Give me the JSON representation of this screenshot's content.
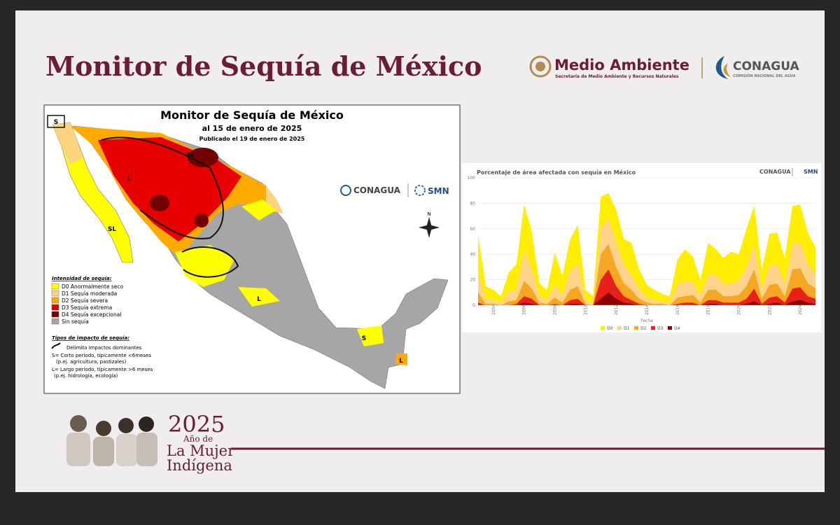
{
  "header": {
    "title": "Monitor de Sequía de México",
    "logo_main": "Medio Ambiente",
    "logo_sub": "Secretaría de Medio Ambiente y Recursos Naturales",
    "logo2_main": "CONAGUA",
    "logo2_sub": "COMISIÓN NACIONAL DEL AGUA"
  },
  "map": {
    "title": "Monitor de Sequía de México",
    "date": "al 15 de enero de 2025",
    "published": "Publicado el 19 de enero de 2025",
    "logos": [
      "CONAGUA",
      "SMN"
    ],
    "north": "N",
    "region_labels": [
      "S",
      "SL",
      "L",
      "SL",
      "L",
      "S",
      "L"
    ],
    "legend_title": "Intensidad de sequía:",
    "legend": [
      {
        "label": "D0 Anormalmente seco",
        "color": "#ffff00"
      },
      {
        "label": "D1 Sequía moderada",
        "color": "#fcd37f"
      },
      {
        "label": "D2 Sequía severa",
        "color": "#ffaa00"
      },
      {
        "label": "D3 Sequía extrema",
        "color": "#e60000"
      },
      {
        "label": "D4 Sequía excepcional",
        "color": "#730000"
      },
      {
        "label": "Sin sequía",
        "color": "#a6a6a6"
      }
    ],
    "impact_title": "Tipos de impacto de sequía:",
    "impact_lines": [
      "Delimita impactos dominantes",
      "S= Corto período, típicamente <6meses",
      "(p.ej. agricultura, pastizales)",
      "L= Largo período, típicamente >6 meses",
      "(p.ej. hidrología, ecología)"
    ]
  },
  "chart_data": {
    "type": "stacked-area",
    "title": "Porcentaje de área afectada con sequía en México",
    "logos": [
      "CONAGUA",
      "SMN"
    ],
    "x_label": "Fecha",
    "x": [
      2003,
      2003.5,
      2004,
      2004.5,
      2005,
      2005.5,
      2006,
      2006.5,
      2007,
      2007.5,
      2008,
      2008.5,
      2009,
      2009.5,
      2010,
      2010.5,
      2011,
      2011.5,
      2012,
      2012.5,
      2013,
      2013.5,
      2014,
      2014.5,
      2015,
      2015.5,
      2016,
      2016.5,
      2017,
      2017.5,
      2018,
      2018.5,
      2019,
      2019.5,
      2020,
      2020.5,
      2021,
      2021.5,
      2022,
      2022.5,
      2023,
      2023.5,
      2024,
      2024.5,
      2025
    ],
    "xlim": [
      2003,
      2025
    ],
    "xticks": [
      2004,
      2006,
      2008,
      2010,
      2012,
      2014,
      2016,
      2018,
      2020,
      2022,
      2024
    ],
    "ylim": [
      0,
      100
    ],
    "yticks": [
      0,
      20,
      40,
      60,
      80,
      100
    ],
    "grid": true,
    "series": [
      {
        "name": "D0",
        "color": "#ffee00",
        "values": [
          30,
          10,
          8,
          5,
          15,
          20,
          35,
          30,
          10,
          8,
          25,
          15,
          25,
          30,
          8,
          5,
          25,
          20,
          25,
          20,
          25,
          15,
          10,
          8,
          6,
          5,
          20,
          25,
          20,
          12,
          25,
          20,
          20,
          25,
          20,
          30,
          30,
          15,
          25,
          25,
          20,
          30,
          30,
          25,
          20
        ]
      },
      {
        "name": "D1",
        "color": "#fdd38a",
        "values": [
          15,
          4,
          3,
          2,
          8,
          8,
          25,
          15,
          5,
          3,
          10,
          6,
          15,
          18,
          3,
          2,
          20,
          20,
          20,
          15,
          12,
          8,
          4,
          3,
          2,
          2,
          10,
          12,
          10,
          6,
          12,
          12,
          10,
          10,
          12,
          15,
          20,
          8,
          15,
          15,
          10,
          20,
          20,
          15,
          12
        ]
      },
      {
        "name": "D2",
        "color": "#f5a623",
        "values": [
          8,
          1,
          1,
          0,
          3,
          3,
          12,
          8,
          2,
          1,
          5,
          2,
          8,
          10,
          1,
          0,
          20,
          20,
          15,
          10,
          8,
          4,
          2,
          1,
          1,
          0,
          5,
          5,
          6,
          2,
          8,
          8,
          5,
          5,
          6,
          10,
          15,
          4,
          10,
          10,
          5,
          15,
          15,
          10,
          8
        ]
      },
      {
        "name": "D3",
        "color": "#e8201a",
        "values": [
          2,
          0,
          0,
          0,
          0,
          1,
          5,
          4,
          0,
          0,
          1,
          0,
          3,
          4,
          0,
          0,
          15,
          18,
          10,
          5,
          3,
          1,
          0,
          0,
          0,
          0,
          1,
          2,
          2,
          0,
          3,
          3,
          2,
          2,
          2,
          4,
          10,
          1,
          5,
          5,
          2,
          10,
          10,
          5,
          4
        ]
      },
      {
        "name": "D4",
        "color": "#8b0000",
        "values": [
          0,
          0,
          0,
          0,
          0,
          0,
          2,
          1,
          0,
          0,
          0,
          0,
          1,
          1,
          0,
          0,
          5,
          10,
          5,
          2,
          1,
          0,
          0,
          0,
          0,
          0,
          0,
          0,
          0,
          0,
          1,
          1,
          0,
          0,
          0,
          1,
          3,
          0,
          1,
          2,
          0,
          3,
          4,
          2,
          1
        ]
      }
    ]
  },
  "footer": {
    "year": "2025",
    "line1": "Año de",
    "line2": "La Mujer",
    "line3": "Indígena"
  }
}
